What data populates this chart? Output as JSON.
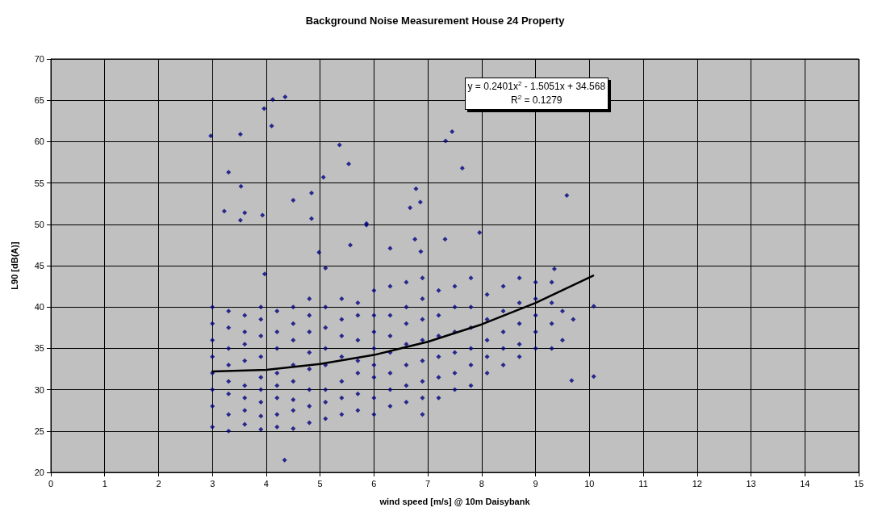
{
  "chart_data": {
    "type": "scatter",
    "title": "Background Noise Measurement House 24 Property",
    "xlabel": "wind speed [m/s] @ 10m Daisybank",
    "ylabel": "L90 [dB(A)]",
    "xlim": [
      0,
      15
    ],
    "xticks": [
      0,
      1,
      2,
      3,
      4,
      5,
      6,
      7,
      8,
      9,
      10,
      11,
      12,
      13,
      14,
      15
    ],
    "ylim": [
      20,
      70
    ],
    "yticks": [
      20,
      25,
      30,
      35,
      40,
      45,
      50,
      55,
      60,
      65,
      70
    ],
    "grid": true,
    "marker": "diamond",
    "annotations": [
      "y = 0.2401x$^{2}$ - 1.5051x + 34.568",
      "R$^{2}$ = 0.1279"
    ],
    "series": [
      {
        "color": "#000080",
        "x": [
          2.97,
          3.22,
          3.3,
          3.52,
          3.53,
          3.52,
          3.6,
          3.93,
          3.96,
          4.1,
          4.12,
          4.35,
          4.5,
          4.84,
          4.84,
          5.06,
          5.36,
          5.53,
          5.56,
          5.86,
          5.86,
          6.3,
          6.67,
          6.78,
          6.86,
          6.76,
          6.87,
          7.33,
          7.45,
          7.64,
          7.32,
          7.96,
          9.58,
          4.34,
          9.67,
          10.08,
          10.08,
          9.35,
          4.98,
          5.1,
          3.97,
          3.0,
          3.0,
          3.0,
          3.0,
          3.0,
          3.0,
          3.0,
          3.0,
          3.3,
          3.3,
          3.3,
          3.3,
          3.3,
          3.3,
          3.3,
          3.3,
          3.6,
          3.6,
          3.6,
          3.6,
          3.6,
          3.6,
          3.6,
          3.6,
          3.9,
          3.9,
          3.9,
          3.9,
          3.9,
          3.9,
          3.9,
          3.9,
          3.9,
          4.2,
          4.2,
          4.2,
          4.2,
          4.2,
          4.2,
          4.2,
          4.2,
          4.5,
          4.5,
          4.5,
          4.5,
          4.5,
          4.5,
          4.5,
          4.5,
          4.8,
          4.8,
          4.8,
          4.8,
          4.8,
          4.8,
          4.8,
          4.8,
          5.1,
          5.1,
          5.1,
          5.1,
          5.1,
          5.1,
          5.1,
          5.4,
          5.4,
          5.4,
          5.4,
          5.4,
          5.4,
          5.4,
          5.7,
          5.7,
          5.7,
          5.7,
          5.7,
          5.7,
          5.7,
          6.0,
          6.0,
          6.0,
          6.0,
          6.0,
          6.0,
          6.0,
          6.0,
          6.3,
          6.3,
          6.3,
          6.3,
          6.3,
          6.3,
          6.3,
          6.6,
          6.6,
          6.6,
          6.6,
          6.6,
          6.6,
          6.6,
          6.9,
          6.9,
          6.9,
          6.9,
          6.9,
          6.9,
          6.9,
          6.9,
          7.2,
          7.2,
          7.2,
          7.2,
          7.2,
          7.2,
          7.5,
          7.5,
          7.5,
          7.5,
          7.5,
          7.5,
          7.8,
          7.8,
          7.8,
          7.8,
          7.8,
          7.8,
          8.1,
          8.1,
          8.1,
          8.1,
          8.1,
          8.4,
          8.4,
          8.4,
          8.4,
          8.4,
          8.7,
          8.7,
          8.7,
          8.7,
          8.7,
          9.0,
          9.0,
          9.0,
          9.0,
          9.0,
          9.3,
          9.3,
          9.3,
          9.3,
          9.5,
          9.5,
          9.7
        ],
        "values": [
          60.7,
          51.6,
          56.3,
          60.9,
          54.6,
          50.5,
          51.4,
          51.1,
          64,
          61.9,
          65.1,
          65.4,
          52.9,
          53.8,
          50.7,
          55.7,
          59.6,
          57.3,
          47.5,
          50.1,
          49.9,
          47.1,
          52,
          54.3,
          52.7,
          48.2,
          46.7,
          60.1,
          61.2,
          56.8,
          48.2,
          49,
          53.5,
          21.5,
          31.1,
          31.6,
          40.1,
          44.6,
          46.6,
          44.7,
          44,
          25.5,
          28,
          30,
          32,
          34,
          36,
          38,
          40,
          25,
          27,
          29.5,
          31,
          33,
          35,
          37.5,
          39.5,
          25.8,
          27.5,
          29,
          30.5,
          33.5,
          35.5,
          37,
          39,
          25.2,
          26.8,
          28.5,
          30,
          31.5,
          34,
          36.5,
          38.5,
          40,
          25.5,
          27,
          29,
          30.5,
          32,
          35,
          37,
          39.5,
          25.3,
          27.5,
          28.8,
          31,
          33,
          36,
          38,
          40,
          26,
          28,
          30,
          32.5,
          34.5,
          37,
          39,
          41,
          26.5,
          28.5,
          30,
          33,
          35,
          37.5,
          40,
          27,
          29,
          31,
          34,
          36.5,
          38.5,
          41,
          27.5,
          29.5,
          32,
          33.5,
          36,
          39,
          40.5,
          27,
          29,
          31.5,
          33,
          35,
          37,
          39,
          42,
          28,
          30,
          32,
          34.5,
          36.5,
          39,
          42.5,
          28.5,
          30.5,
          33,
          35.5,
          38,
          40,
          43,
          27,
          29,
          31,
          33.5,
          36,
          38.5,
          41,
          43.5,
          29,
          31.5,
          34,
          36.5,
          39,
          42,
          30,
          32,
          34.5,
          37,
          40,
          42.5,
          30.5,
          33,
          35,
          37.5,
          40,
          43.5,
          32,
          34,
          36,
          38.5,
          41.5,
          33,
          35,
          37,
          39.5,
          42.5,
          34,
          35.5,
          38,
          40.5,
          43.5,
          35,
          37,
          39,
          41,
          43,
          35,
          38,
          40.5,
          43,
          36,
          39.5,
          38.5
        ]
      },
      {
        "type": "line",
        "color": "#000000",
        "marker": "none",
        "line_style": "solid",
        "x": [
          3,
          4,
          5,
          6,
          7,
          8,
          9,
          10.07
        ],
        "values": [
          32.2,
          32.4,
          33.1,
          34.2,
          35.8,
          37.9,
          40.5,
          43.8
        ]
      }
    ]
  }
}
